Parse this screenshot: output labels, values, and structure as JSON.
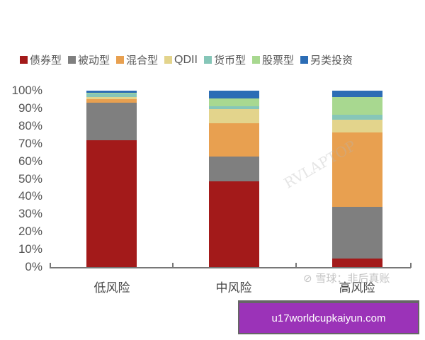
{
  "chart_data": {
    "type": "bar",
    "stacked": true,
    "title": "",
    "xlabel": "",
    "ylabel": "",
    "ylim": [
      0,
      100
    ],
    "y_ticks": [
      "0%",
      "10%",
      "20%",
      "30%",
      "40%",
      "50%",
      "60%",
      "70%",
      "80%",
      "90%",
      "100%"
    ],
    "categories": [
      "低风险",
      "中风险",
      "高风险"
    ],
    "legend_position": "top",
    "grid": false,
    "series": [
      {
        "name": "债券型",
        "color": "#a31a1a",
        "values": [
          72,
          48.5,
          5
        ]
      },
      {
        "name": "被动型",
        "color": "#7f7f7f",
        "values": [
          21,
          14,
          29
        ]
      },
      {
        "name": "混合型",
        "color": "#e8a050",
        "values": [
          2,
          19,
          42.5
        ]
      },
      {
        "name": "QDII",
        "color": "#e3d48c",
        "values": [
          1.5,
          8,
          7
        ]
      },
      {
        "name": "货币型",
        "color": "#86c6b8",
        "values": [
          2,
          1.5,
          3
        ]
      },
      {
        "name": "股票型",
        "color": "#a8d890",
        "values": [
          0.5,
          4.5,
          10
        ]
      },
      {
        "name": "另类投资",
        "color": "#2c6db5",
        "values": [
          1,
          4.5,
          3.5
        ]
      }
    ]
  },
  "legend": [
    {
      "label": "债券型",
      "color": "#a31a1a"
    },
    {
      "label": "被动型",
      "color": "#7f7f7f"
    },
    {
      "label": "混合型",
      "color": "#e8a050"
    },
    {
      "label": "QDII",
      "color": "#e3d48c"
    },
    {
      "label": "货币型",
      "color": "#86c6b8"
    },
    {
      "label": "股票型",
      "color": "#a8d890"
    },
    {
      "label": "另类投资",
      "color": "#2c6db5"
    }
  ],
  "watermark": {
    "text": "RVLAPTOP",
    "source": "雪球：非后真账"
  },
  "banner": {
    "text": "u17worldcupkaiyun.com"
  }
}
